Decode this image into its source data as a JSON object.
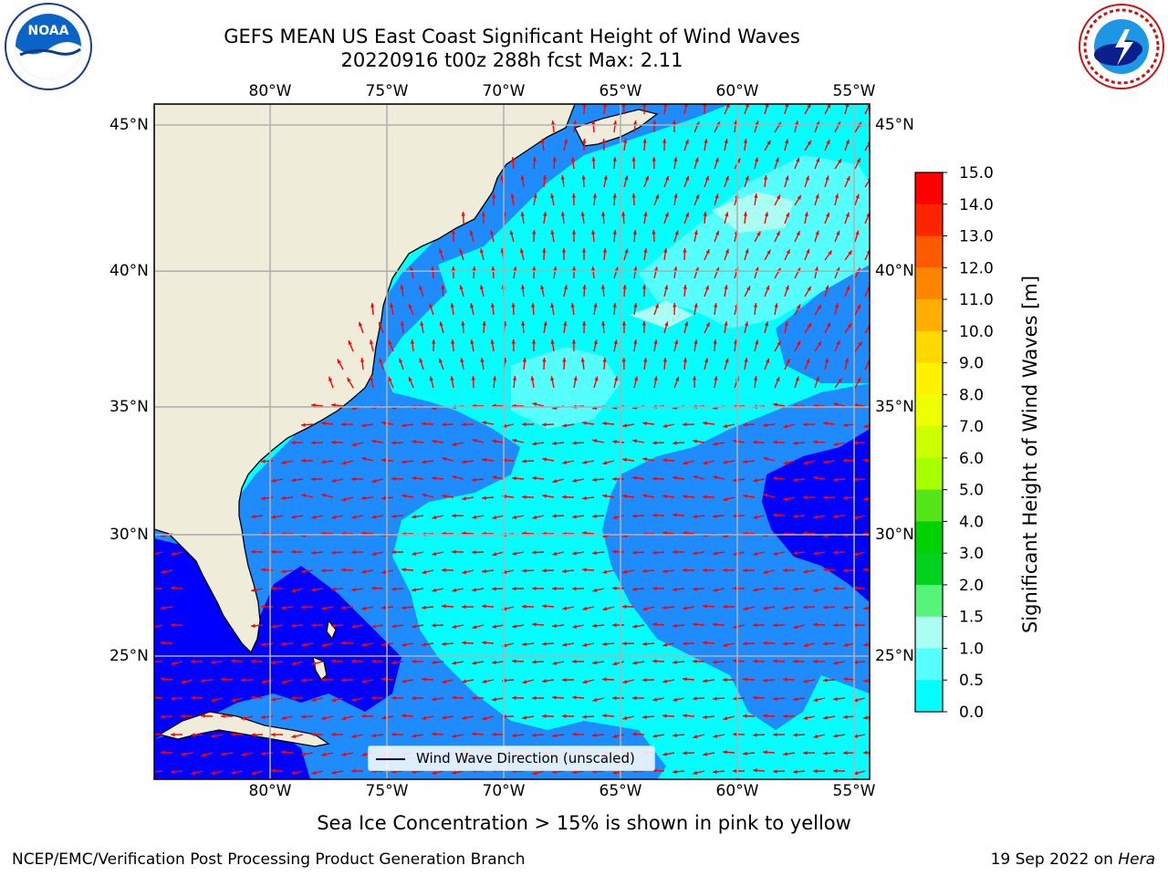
{
  "header": {
    "title_line1": "GEFS MEAN US East Coast Significant Height of Wind Waves",
    "title_line2": "20220916 t00z 288h fcst   Max: 2.11"
  },
  "logos": {
    "left": {
      "text": "NOAA",
      "ring_text": "NATIONAL OCEANIC AND ATMOSPHERIC ADMINISTRATION · U.S. DEPARTMENT OF COMMERCE"
    },
    "right": {
      "ring_text": "NATIONAL WEATHER SERVICE"
    }
  },
  "map": {
    "lon_labels": [
      "80°W",
      "75°W",
      "70°W",
      "65°W",
      "60°W",
      "55°W"
    ],
    "lat_labels": [
      "45°N",
      "40°N",
      "35°N",
      "30°N",
      "25°N"
    ],
    "lon_values": [
      -80,
      -75,
      -70,
      -65,
      -60,
      -55
    ],
    "lat_values": [
      45,
      40,
      35,
      30,
      25
    ],
    "land_color": "#efedda",
    "arrow_color": "#ff0000",
    "legend_label": "Wind Wave Direction (unscaled)"
  },
  "colorbar": {
    "label": "Significant Height of Wind Waves [m]",
    "ticks": [
      "15.0",
      "14.0",
      "13.0",
      "12.0",
      "11.0",
      "10.0",
      "9.0",
      "8.0",
      "7.0",
      "6.0",
      "5.0",
      "4.0",
      "3.0",
      "2.0",
      "1.5",
      "1.0",
      "0.5",
      "0.0"
    ],
    "colors": [
      "#ff0000",
      "#ff2400",
      "#ff5a00",
      "#ff8400",
      "#ffae00",
      "#ffd800",
      "#fff200",
      "#eeff00",
      "#ccff00",
      "#a8ff00",
      "#55e61a",
      "#00d200",
      "#00d21e",
      "#56f57a",
      "#aafff2",
      "#55ffff",
      "#00ffff",
      "#1e8cff",
      "#0000ff"
    ]
  },
  "subtitle": "Sea Ice Concentration > 15% is shown in pink to yellow",
  "footer": {
    "left": "NCEP/EMC/Verification Post Processing Product Generation Branch",
    "right_prefix": "19 Sep 2022 on ",
    "right_host": "Hera"
  }
}
